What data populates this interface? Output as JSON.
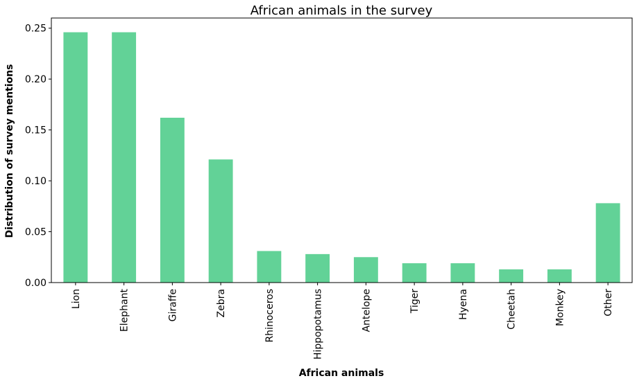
{
  "chart_data": {
    "type": "bar",
    "title": "African animals in the survey",
    "xlabel": "African animals",
    "ylabel": "Distribution of survey mentions",
    "categories": [
      "Lion",
      "Elephant",
      "Giraffe",
      "Zebra",
      "Rhinoceros",
      "Hippopotamus",
      "Antelope",
      "Tiger",
      "Hyena",
      "Cheetah",
      "Monkey",
      "Other"
    ],
    "values": [
      0.246,
      0.246,
      0.162,
      0.121,
      0.031,
      0.028,
      0.025,
      0.019,
      0.019,
      0.013,
      0.013,
      0.078
    ],
    "ylim": [
      0,
      0.26
    ],
    "yticks": [
      0.0,
      0.05,
      0.1,
      0.15,
      0.2,
      0.25
    ],
    "ytick_labels": [
      "0.00",
      "0.05",
      "0.10",
      "0.15",
      "0.20",
      "0.25"
    ],
    "bar_color": "#62d297",
    "grid": false,
    "legend": "none"
  }
}
